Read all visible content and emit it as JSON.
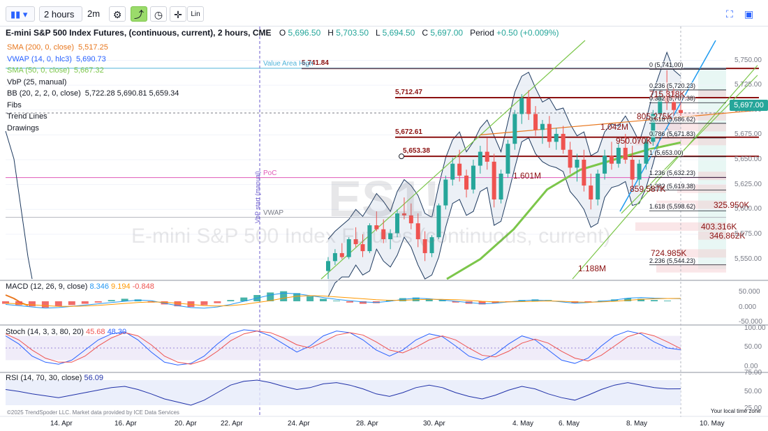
{
  "toolbar": {
    "interval": "2 hours",
    "compare": "2m",
    "lin": "Lin"
  },
  "header": {
    "title": "E-mini S&P 500 Index Futures, (continuous, current), 2 hours, CME",
    "o_label": "O",
    "o": "5,696.50",
    "h_label": "H",
    "h": "5,703.50",
    "l_label": "L",
    "l": "5,694.50",
    "c_label": "C",
    "c": "5,697.00",
    "period_label": "Period",
    "period": "+0.50 (+0.009%)"
  },
  "legend": [
    {
      "name": "SMA (200, 0, close)",
      "value": "5,517.25",
      "color": "#e8771e"
    },
    {
      "name": "VWAP (14, 0, hlc3)",
      "value": "5,690.73",
      "color": "#2962ff"
    },
    {
      "name": "SMA (50, 0, close)",
      "value": "5,667.32",
      "color": "#7cc64a"
    },
    {
      "name": "VbP (25, manual)",
      "value": "",
      "color": "#131722"
    },
    {
      "name": "BB (20, 2, 2, 0, close)",
      "value": "5,722.28  5,690.81  5,659.34",
      "color": "#131722"
    },
    {
      "name": "Fibs",
      "value": "",
      "color": "#131722"
    },
    {
      "name": "Trend Lines",
      "value": "",
      "color": "#131722"
    },
    {
      "name": "Drawings",
      "value": "",
      "color": "#131722"
    }
  ],
  "annotations": {
    "value_area_high": "Value Area High",
    "poc": "PoC",
    "vwap": "VWAP",
    "vbp_start": "VbP start (manual)",
    "watermark_symbol": "ES1!",
    "watermark_name": "E-mini S&P 500 Index Futures (continuous, current)",
    "footer_left": "©2025 TrendSpoder LLC. Market data provided by ICE Data Services",
    "footer_right": "Your local time zone"
  },
  "price_badge": "5,697.00",
  "chart_data": {
    "type": "candlestick",
    "interval": "2 hours",
    "y_range": [
      5530,
      5770
    ],
    "y_ticks": [
      "5,750.00",
      "5,725.00",
      "5,700.00",
      "5,675.00",
      "5,650.00",
      "5,625.00",
      "5,600.00",
      "5,575.00",
      "5,550.00"
    ],
    "x_ticks": [
      "14. Apr",
      "16. Apr",
      "20. Apr",
      "22. Apr",
      "24. Apr",
      "28. Apr",
      "30. Apr",
      "4. May",
      "6. May",
      "8. May",
      "10. May"
    ],
    "last_close": 5697.0,
    "horizontal_levels": [
      {
        "label": "5,741.84",
        "value": 5741.84
      },
      {
        "label": "5,712.47",
        "value": 5712.47
      },
      {
        "label": "5,672.61",
        "value": 5672.61
      },
      {
        "label": "5,653.38",
        "value": 5653.38
      }
    ],
    "fib_levels": [
      {
        "label": "0 (5,741.00)",
        "value": 5741.0
      },
      {
        "label": "0.236 (5,720.23)",
        "value": 5720.23
      },
      {
        "label": "0.382 (5,707.38)",
        "value": 5707.38
      },
      {
        "label": "0.618 (5,686.62)",
        "value": 5686.62
      },
      {
        "label": "0.786 (5,671.83)",
        "value": 5671.83
      },
      {
        "label": "1 (5,653.00)",
        "value": 5653.0
      },
      {
        "label": "1.236 (5,632.23)",
        "value": 5632.23
      },
      {
        "label": "1.382 (5,619.38)",
        "value": 5619.38
      },
      {
        "label": "1.618 (5,598.62)",
        "value": 5598.62
      },
      {
        "label": "2.236 (5,544.23)",
        "value": 5544.23
      }
    ],
    "volume_profile_labels": [
      {
        "label": "715.318K",
        "price": 5715
      },
      {
        "label": "805.275K",
        "price": 5693
      },
      {
        "label": "1.042M",
        "price": 5682
      },
      {
        "label": "950.070K",
        "price": 5668
      },
      {
        "label": "1.601M",
        "price": 5633
      },
      {
        "label": "859.587K",
        "price": 5620
      },
      {
        "label": "325.950K",
        "price": 5604
      },
      {
        "label": "403.316K",
        "price": 5582
      },
      {
        "label": "346.862K",
        "price": 5573
      },
      {
        "label": "724.985K",
        "price": 5555
      },
      {
        "label": "1.188M",
        "price": 5540
      }
    ],
    "candles": [
      [
        5538,
        5552,
        5530,
        5548
      ],
      [
        5548,
        5560,
        5544,
        5556
      ],
      [
        5556,
        5566,
        5550,
        5552
      ],
      [
        5552,
        5572,
        5550,
        5570
      ],
      [
        5570,
        5582,
        5562,
        5565
      ],
      [
        5565,
        5575,
        5552,
        5558
      ],
      [
        5558,
        5586,
        5556,
        5584
      ],
      [
        5584,
        5598,
        5578,
        5580
      ],
      [
        5580,
        5590,
        5566,
        5570
      ],
      [
        5570,
        5580,
        5560,
        5576
      ],
      [
        5576,
        5600,
        5572,
        5596
      ],
      [
        5596,
        5612,
        5590,
        5594
      ],
      [
        5594,
        5606,
        5580,
        5586
      ],
      [
        5586,
        5596,
        5562,
        5570
      ],
      [
        5570,
        5578,
        5548,
        5556
      ],
      [
        5556,
        5574,
        5552,
        5572
      ],
      [
        5572,
        5606,
        5570,
        5604
      ],
      [
        5604,
        5634,
        5600,
        5630
      ],
      [
        5630,
        5652,
        5624,
        5646
      ],
      [
        5646,
        5660,
        5628,
        5634
      ],
      [
        5634,
        5640,
        5612,
        5620
      ],
      [
        5620,
        5650,
        5616,
        5644
      ],
      [
        5644,
        5664,
        5636,
        5658
      ],
      [
        5658,
        5672,
        5640,
        5648
      ],
      [
        5648,
        5656,
        5602,
        5610
      ],
      [
        5610,
        5640,
        5606,
        5636
      ],
      [
        5636,
        5670,
        5632,
        5666
      ],
      [
        5666,
        5700,
        5660,
        5696
      ],
      [
        5696,
        5716,
        5686,
        5712
      ],
      [
        5712,
        5720,
        5690,
        5696
      ],
      [
        5696,
        5704,
        5674,
        5680
      ],
      [
        5680,
        5690,
        5666,
        5686
      ],
      [
        5686,
        5694,
        5662,
        5668
      ],
      [
        5668,
        5682,
        5660,
        5676
      ],
      [
        5676,
        5684,
        5656,
        5660
      ],
      [
        5660,
        5668,
        5636,
        5642
      ],
      [
        5642,
        5656,
        5628,
        5650
      ],
      [
        5650,
        5660,
        5618,
        5624
      ],
      [
        5624,
        5636,
        5600,
        5610
      ],
      [
        5610,
        5640,
        5604,
        5636
      ],
      [
        5636,
        5660,
        5630,
        5654
      ],
      [
        5654,
        5668,
        5640,
        5646
      ],
      [
        5646,
        5666,
        5642,
        5662
      ],
      [
        5662,
        5676,
        5646,
        5650
      ],
      [
        5650,
        5664,
        5622,
        5630
      ],
      [
        5630,
        5650,
        5624,
        5646
      ],
      [
        5646,
        5672,
        5640,
        5668
      ],
      [
        5668,
        5700,
        5664,
        5696
      ],
      [
        5696,
        5720,
        5690,
        5714
      ],
      [
        5714,
        5740,
        5700,
        5708
      ],
      [
        5708,
        5722,
        5690,
        5700
      ],
      [
        5700,
        5716,
        5694,
        5697
      ]
    ],
    "sma200_values": [
      5470,
      5480,
      5490,
      5500,
      5517.25
    ],
    "sma50_values": [
      5530,
      5550,
      5580,
      5620,
      5640,
      5650,
      5660,
      5667.32
    ],
    "vwap_last": 5690.73,
    "bb_last": [
      5722.28,
      5690.81,
      5659.34
    ]
  },
  "macd": {
    "label": "MACD (12, 26, 9, close)",
    "v1": "8.346",
    "v2": "9.194",
    "v3": "-0.848",
    "ticks": [
      "50.000",
      "0.000",
      "-50.000"
    ],
    "histogram": [
      -4,
      -6,
      -8,
      -10,
      -8,
      -6,
      -4,
      -2,
      2,
      4,
      3,
      -2,
      -5,
      -8,
      -9,
      -6,
      -3,
      2,
      6,
      10,
      14,
      16,
      13,
      8,
      4,
      1,
      -2,
      -4,
      -3,
      2,
      5,
      6,
      4,
      2,
      -2,
      -4,
      -5,
      -3,
      -1,
      2,
      3,
      2,
      -1,
      -3,
      -2,
      1,
      3,
      5,
      4,
      2,
      1,
      0
    ],
    "line_macd": [
      -10,
      -14,
      -18,
      -22,
      -20,
      -16,
      -12,
      -8,
      -4,
      0,
      4,
      2,
      -6,
      -14,
      -20,
      -22,
      -18,
      -10,
      0,
      10,
      20,
      26,
      24,
      18,
      12,
      6,
      2,
      -2,
      -4,
      0,
      6,
      10,
      8,
      4,
      0,
      -4,
      -8,
      -6,
      -2,
      2,
      4,
      2,
      -2,
      -6,
      -4,
      0,
      4,
      10,
      12,
      10,
      9,
      8.3
    ],
    "line_signal": [
      -6,
      -8,
      -11,
      -14,
      -16,
      -16,
      -15,
      -13,
      -10,
      -7,
      -4,
      -2,
      -3,
      -6,
      -10,
      -14,
      -15,
      -14,
      -10,
      -4,
      2,
      10,
      16,
      18,
      17,
      14,
      11,
      8,
      5,
      3,
      3,
      5,
      6,
      6,
      5,
      3,
      0,
      -2,
      -2,
      -1,
      0,
      1,
      0,
      -2,
      -3,
      -2,
      0,
      3,
      6,
      8,
      9,
      9.2
    ]
  },
  "stoch": {
    "label": "Stoch (14, 3, 3, 80, 20)",
    "v1": "45.68",
    "v2": "48.30",
    "ticks": [
      "100.00",
      "50.00",
      "0.00"
    ],
    "k": [
      80,
      60,
      30,
      15,
      10,
      20,
      45,
      70,
      85,
      90,
      70,
      40,
      15,
      8,
      12,
      30,
      60,
      85,
      95,
      92,
      80,
      60,
      40,
      55,
      80,
      92,
      88,
      70,
      45,
      30,
      45,
      70,
      85,
      78,
      55,
      30,
      20,
      35,
      60,
      80,
      70,
      45,
      20,
      12,
      25,
      55,
      80,
      92,
      85,
      65,
      50,
      45.7
    ],
    "d": [
      85,
      70,
      45,
      25,
      15,
      15,
      30,
      55,
      75,
      88,
      80,
      58,
      30,
      15,
      10,
      20,
      42,
      68,
      85,
      92,
      88,
      75,
      58,
      50,
      65,
      82,
      88,
      82,
      65,
      45,
      38,
      52,
      70,
      80,
      70,
      50,
      32,
      28,
      42,
      62,
      72,
      62,
      42,
      25,
      18,
      32,
      55,
      78,
      88,
      80,
      65,
      48.3
    ]
  },
  "rsi": {
    "label": "RSI (14, 70, 30, close)",
    "value": "56.09",
    "ticks": [
      "75.00",
      "50.00",
      "25.00"
    ],
    "line": [
      55,
      52,
      48,
      45,
      42,
      46,
      50,
      54,
      58,
      60,
      55,
      48,
      40,
      35,
      30,
      38,
      50,
      62,
      68,
      70,
      66,
      60,
      55,
      58,
      64,
      66,
      62,
      56,
      48,
      44,
      50,
      58,
      62,
      58,
      50,
      44,
      40,
      46,
      54,
      60,
      56,
      48,
      42,
      38,
      46,
      55,
      62,
      66,
      62,
      58,
      56,
      56.1
    ]
  }
}
